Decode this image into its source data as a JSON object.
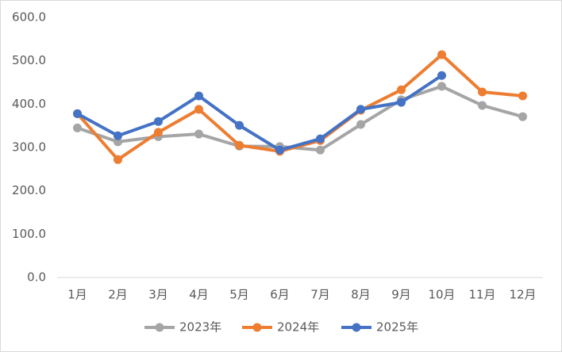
{
  "chart_data": {
    "type": "line",
    "categories": [
      "1月",
      "2月",
      "3月",
      "4月",
      "5月",
      "6月",
      "7月",
      "8月",
      "9月",
      "10月",
      "11月",
      "12月"
    ],
    "series": [
      {
        "name": "2023年",
        "color": "#a5a5a5",
        "values": [
          345,
          313,
          325,
          331,
          303,
          302,
          294,
          353,
          410,
          441,
          397,
          371
        ]
      },
      {
        "name": "2024年",
        "color": "#ed7d31",
        "values": [
          378,
          272,
          335,
          388,
          305,
          291,
          316,
          386,
          433,
          514,
          428,
          419
        ]
      },
      {
        "name": "2025年",
        "color": "#4472c4",
        "values": [
          378,
          327,
          360,
          419,
          351,
          294,
          320,
          388,
          404,
          466,
          null,
          null
        ]
      }
    ],
    "ylim": [
      0,
      600
    ],
    "yticks": [
      {
        "value": 0,
        "label": "0.0"
      },
      {
        "value": 100,
        "label": "100.0"
      },
      {
        "value": 200,
        "label": "200.0"
      },
      {
        "value": 300,
        "label": "300.0"
      },
      {
        "value": 400,
        "label": "400.0"
      },
      {
        "value": 500,
        "label": "500.0"
      },
      {
        "value": 600,
        "label": "600.0"
      }
    ],
    "grid": false,
    "legend": "bottom"
  }
}
